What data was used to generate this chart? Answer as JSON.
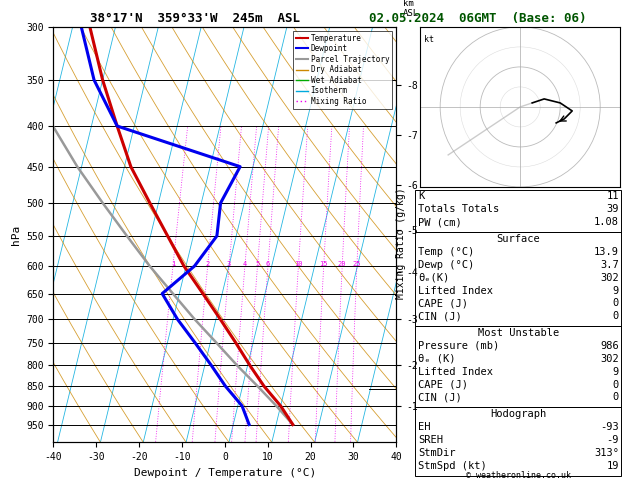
{
  "title_left": "38°17'N  359°33'W  245m  ASL",
  "title_right": "02.05.2024  06GMT  (Base: 06)",
  "xlabel": "Dewpoint / Temperature (°C)",
  "ylabel_left": "hPa",
  "bg_color": "#ffffff",
  "pressure_levels": [
    300,
    350,
    400,
    450,
    500,
    550,
    600,
    650,
    700,
    750,
    800,
    850,
    900,
    950
  ],
  "xlim": [
    -40,
    40
  ],
  "temp_profile_p": [
    950,
    900,
    850,
    800,
    750,
    700,
    650,
    600,
    550,
    500,
    450,
    400,
    350,
    300
  ],
  "temp_profile_t": [
    13.9,
    10.0,
    5.0,
    0.5,
    -4.0,
    -9.0,
    -14.5,
    -20.5,
    -26.0,
    -32.0,
    -38.5,
    -44.0,
    -50.0,
    -56.0
  ],
  "dewp_profile_p": [
    950,
    900,
    850,
    800,
    750,
    700,
    650,
    600,
    550,
    500,
    450,
    400,
    350,
    300
  ],
  "dewp_profile_t": [
    3.7,
    1.0,
    -4.0,
    -8.5,
    -13.5,
    -19.0,
    -24.0,
    -18.0,
    -14.5,
    -15.5,
    -13.0,
    -44.0,
    -52.0,
    -58.0
  ],
  "parcel_p": [
    950,
    900,
    850,
    800,
    750,
    700,
    650,
    600,
    550,
    500,
    450,
    400,
    350,
    300
  ],
  "parcel_t": [
    13.9,
    9.0,
    3.5,
    -2.5,
    -8.5,
    -15.0,
    -21.5,
    -28.5,
    -35.5,
    -43.0,
    -51.0,
    -59.0,
    -68.0,
    -78.0
  ],
  "temp_color": "#cc0000",
  "dewp_color": "#0000ee",
  "parcel_color": "#999999",
  "dry_adiabat_color": "#cc8800",
  "wet_adiabat_color": "#00aa00",
  "isotherm_color": "#00aadd",
  "mixing_ratio_color": "#ee00ee",
  "lcl_pressure": 858,
  "km_ticks": [
    1,
    2,
    3,
    4,
    5,
    6,
    7,
    8
  ],
  "km_pressures": [
    900,
    800,
    700,
    610,
    540,
    475,
    410,
    355
  ],
  "mixing_ratio_lines": [
    1,
    2,
    3,
    4,
    5,
    6,
    10,
    15,
    20,
    25
  ],
  "info_K": 11,
  "info_TT": 39,
  "info_PW": 1.08,
  "surf_temp": 13.9,
  "surf_dewp": 3.7,
  "surf_thetae": 302,
  "surf_li": 9,
  "surf_cape": 0,
  "surf_cin": 0,
  "mu_pres": 986,
  "mu_thetae": 302,
  "mu_li": 9,
  "mu_cape": 0,
  "mu_cin": 0,
  "hodo_EH": -93,
  "hodo_SREH": -9,
  "hodo_StmDir": "313°",
  "hodo_StmSpd": 19
}
